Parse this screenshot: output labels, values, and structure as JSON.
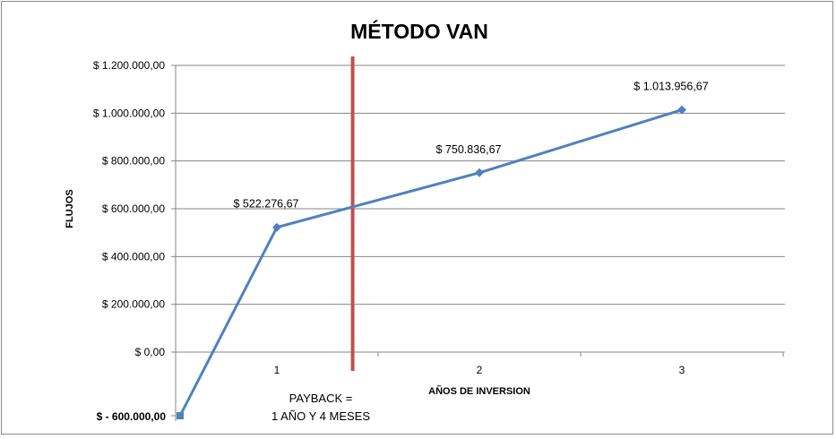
{
  "chart_data": {
    "type": "line",
    "title": "MÉTODO VAN",
    "xlabel": "AÑOS DE INVERSION",
    "ylabel": "FLUJOS",
    "categories": [
      "1",
      "2",
      "3"
    ],
    "ytick_labels": [
      "$ 0,00",
      "$ 200.000,00",
      "$ 400.000,00",
      "$ 600.000,00",
      "$ 800.000,00",
      "$ 1.000.000,00",
      "$ 1.200.000,00"
    ],
    "ylim": [
      0,
      1200000
    ],
    "y_min_label": "$ - 600.000,00",
    "series": [
      {
        "points": [
          {
            "x": 0,
            "y": -600000,
            "label": ""
          },
          {
            "x": 1,
            "y": 522276.67,
            "label": "$ 522.276,67"
          },
          {
            "x": 2,
            "y": 750836.67,
            "label": "$ 750.836,67"
          },
          {
            "x": 3,
            "y": 1013956.67,
            "label": "$ 1.013.956,67"
          }
        ]
      }
    ],
    "payback_x": 1.33,
    "annotation": [
      "PAYBACK =",
      "1 AÑO Y 4 MESES"
    ],
    "grid": true,
    "legend": "none",
    "colors": {
      "series": "#4f81bd",
      "marker": "#4f81bd",
      "payback_line": "#c0504d",
      "grid": "#868686",
      "axis": "#868686"
    }
  }
}
